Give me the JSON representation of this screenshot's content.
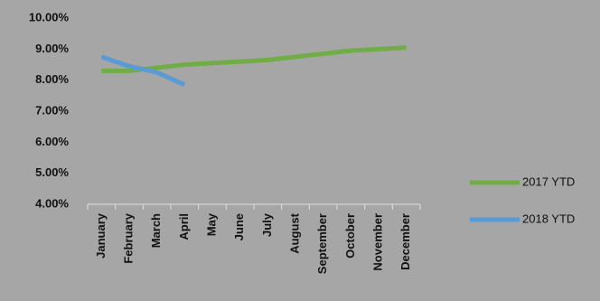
{
  "chart_data": {
    "type": "line",
    "categories": [
      "January",
      "February",
      "March",
      "April",
      "May",
      "June",
      "July",
      "August",
      "September",
      "October",
      "November",
      "December"
    ],
    "series": [
      {
        "name": "2017 YTD",
        "color": "#70ad47",
        "values": [
          8.3,
          8.3,
          8.4,
          8.5,
          8.55,
          8.6,
          8.65,
          8.75,
          8.85,
          8.95,
          9.0,
          9.05
        ]
      },
      {
        "name": "2018 YTD",
        "color": "#5b9bd5",
        "values": [
          8.75,
          8.45,
          8.25,
          7.85,
          null,
          null,
          null,
          null,
          null,
          null,
          null,
          null
        ]
      }
    ],
    "ylim": [
      4,
      10
    ],
    "yticks": [
      {
        "value": 4,
        "label": "4.00%"
      },
      {
        "value": 5,
        "label": "5.00%"
      },
      {
        "value": 6,
        "label": "6.00%"
      },
      {
        "value": 7,
        "label": "7.00%"
      },
      {
        "value": 8,
        "label": "8.00%"
      },
      {
        "value": 9,
        "label": "9.00%"
      },
      {
        "value": 10,
        "label": "10.00%"
      }
    ],
    "grid": false,
    "legend": "right"
  }
}
